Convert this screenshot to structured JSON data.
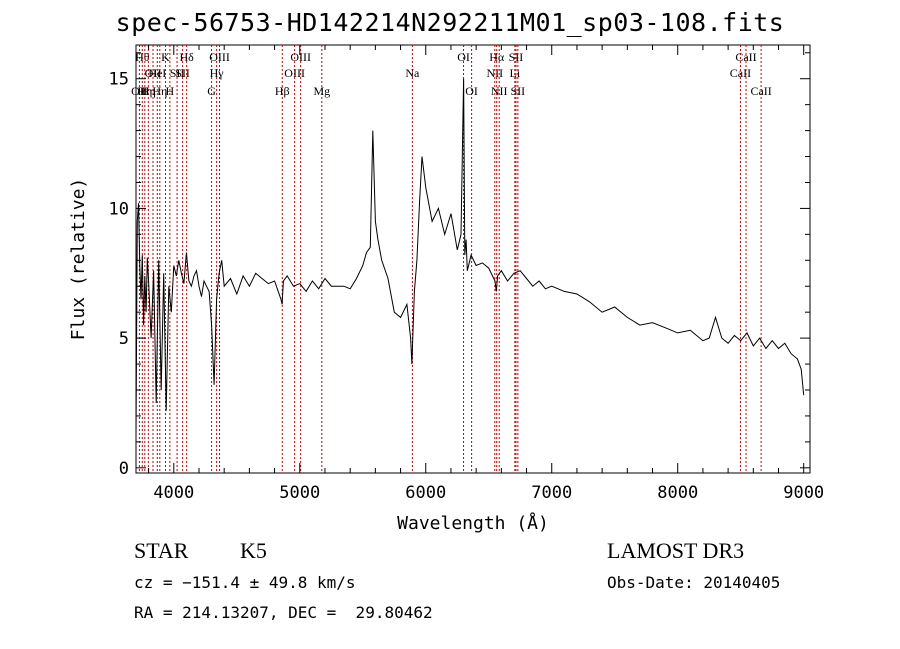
{
  "chart_data": {
    "type": "line",
    "title": "spec-56753-HD142214N292211M01_sp03-108.fits",
    "xlabel": "Wavelength (Å)",
    "ylabel": "Flux (relative)",
    "xlim": [
      3700,
      9050
    ],
    "ylim": [
      -0.2,
      16.3
    ],
    "x_ticks": [
      4000,
      5000,
      6000,
      7000,
      8000,
      9000
    ],
    "y_ticks": [
      0,
      5,
      10,
      15
    ],
    "grid": false,
    "line_color": "#000000",
    "marker_color": "#c00000",
    "series": [
      {
        "x": [
          3700,
          3710,
          3720,
          3730,
          3740,
          3750,
          3760,
          3770,
          3780,
          3790,
          3800,
          3820,
          3840,
          3860,
          3880,
          3900,
          3920,
          3940,
          3960,
          3980,
          4000,
          4020,
          4040,
          4060,
          4080,
          4100,
          4120,
          4140,
          4160,
          4180,
          4200,
          4220,
          4240,
          4260,
          4280,
          4300,
          4320,
          4340,
          4360,
          4380,
          4400,
          4450,
          4500,
          4550,
          4600,
          4650,
          4700,
          4750,
          4800,
          4850,
          4860,
          4870,
          4900,
          4950,
          5000,
          5050,
          5100,
          5150,
          5200,
          5250,
          5300,
          5350,
          5400,
          5450,
          5500,
          5530,
          5560,
          5580,
          5600,
          5620,
          5650,
          5700,
          5750,
          5800,
          5850,
          5880,
          5890,
          5900,
          5910,
          5930,
          5950,
          5970,
          6000,
          6050,
          6100,
          6150,
          6200,
          6250,
          6280,
          6300,
          6310,
          6320,
          6330,
          6360,
          6400,
          6450,
          6500,
          6550,
          6560,
          6570,
          6600,
          6650,
          6700,
          6750,
          6800,
          6850,
          6900,
          6950,
          7000,
          7100,
          7200,
          7300,
          7400,
          7500,
          7600,
          7700,
          7800,
          7900,
          8000,
          8100,
          8200,
          8250,
          8300,
          8350,
          8400,
          8450,
          8500,
          8550,
          8600,
          8650,
          8700,
          8750,
          8800,
          8850,
          8900,
          8950,
          8980,
          9000
        ],
        "y": [
          1.2,
          9.5,
          10.2,
          7.8,
          6.5,
          8.2,
          5.5,
          7.4,
          6.0,
          8.1,
          7.2,
          5.0,
          7.6,
          2.5,
          8.0,
          3.0,
          7.5,
          2.2,
          7.0,
          6.0,
          7.8,
          7.4,
          8.0,
          7.5,
          7.1,
          8.3,
          7.2,
          7.0,
          7.4,
          7.6,
          7.0,
          6.6,
          7.2,
          7.0,
          6.8,
          5.5,
          3.2,
          6.5,
          7.5,
          8.0,
          7.0,
          7.3,
          6.7,
          7.4,
          7.0,
          7.5,
          7.3,
          7.1,
          7.2,
          6.5,
          6.3,
          7.2,
          7.4,
          7.0,
          7.1,
          6.8,
          7.2,
          6.9,
          7.3,
          7.0,
          7.0,
          7.0,
          6.9,
          7.3,
          7.8,
          8.3,
          8.5,
          13.0,
          9.5,
          8.8,
          8.0,
          7.3,
          6.0,
          5.8,
          6.3,
          5.0,
          4.0,
          5.5,
          6.8,
          8.0,
          10.2,
          12.0,
          10.8,
          9.5,
          10.0,
          9.0,
          9.8,
          8.4,
          9.0,
          15.0,
          8.2,
          8.8,
          7.6,
          8.2,
          7.8,
          7.9,
          7.7,
          7.2,
          6.8,
          7.4,
          7.6,
          7.2,
          7.5,
          7.6,
          7.3,
          7.0,
          7.2,
          6.9,
          7.0,
          6.8,
          6.7,
          6.4,
          6.0,
          6.2,
          5.8,
          5.5,
          5.6,
          5.4,
          5.2,
          5.3,
          4.9,
          5.0,
          5.8,
          5.0,
          4.8,
          5.1,
          4.9,
          5.2,
          4.7,
          5.0,
          4.6,
          4.9,
          4.6,
          4.8,
          4.4,
          4.2,
          3.8,
          2.8
        ]
      }
    ],
    "line_markers": [
      {
        "wl": 3727,
        "row": 3,
        "label": "OII"
      },
      {
        "wl": 3750,
        "row": 1,
        "label": "Hθ"
      },
      {
        "wl": 3770,
        "row": 3,
        "label": "Hη"
      },
      {
        "wl": 3798,
        "row": 3,
        "label": "Hη"
      },
      {
        "wl": 3835,
        "row": 2,
        "label": "OII"
      },
      {
        "wl": 3869,
        "row": 2,
        "label": "HeI"
      },
      {
        "wl": 3889,
        "row": 3,
        "label": "Hη"
      },
      {
        "wl": 3934,
        "row": 1,
        "label": "K"
      },
      {
        "wl": 3969,
        "row": 3,
        "label": "H"
      },
      {
        "wl": 4026,
        "row": 2,
        "label": "SII"
      },
      {
        "wl": 4070,
        "row": 2,
        "label": "SII"
      },
      {
        "wl": 4102,
        "row": 1,
        "label": "Hδ"
      },
      {
        "wl": 4300,
        "row": 3,
        "label": "G"
      },
      {
        "wl": 4340,
        "row": 2,
        "label": "Hγ"
      },
      {
        "wl": 4363,
        "row": 1,
        "label": "OIII"
      },
      {
        "wl": 4861,
        "row": 3,
        "label": "Hβ"
      },
      {
        "wl": 4959,
        "row": 2,
        "label": "OIII"
      },
      {
        "wl": 5007,
        "row": 1,
        "label": "OIII"
      },
      {
        "wl": 5175,
        "row": 3,
        "label": "Mg"
      },
      {
        "wl": 5894,
        "row": 2,
        "label": "Na"
      },
      {
        "wl": 6300,
        "row": 1,
        "label": "OI"
      },
      {
        "wl": 6364,
        "row": 3,
        "label": "OI"
      },
      {
        "wl": 6548,
        "row": 2,
        "label": "NII"
      },
      {
        "wl": 6563,
        "row": 1,
        "label": "Hα"
      },
      {
        "wl": 6583,
        "row": 3,
        "label": "NII"
      },
      {
        "wl": 6707,
        "row": 2,
        "label": "Li"
      },
      {
        "wl": 6716,
        "row": 1,
        "label": "SII"
      },
      {
        "wl": 6731,
        "row": 3,
        "label": "SII"
      },
      {
        "wl": 8498,
        "row": 2,
        "label": "CaII"
      },
      {
        "wl": 8542,
        "row": 1,
        "label": "CaII"
      },
      {
        "wl": 8662,
        "row": 3,
        "label": "CaII"
      }
    ]
  },
  "info": {
    "object_class": "STAR",
    "subclass": "K5",
    "survey": "LAMOST DR3",
    "cz": "cz = −151.4 ± 49.8 km/s",
    "obs_date": "Obs-Date: 20140405",
    "radec": "RA = 214.13207, DEC =  29.80462"
  }
}
